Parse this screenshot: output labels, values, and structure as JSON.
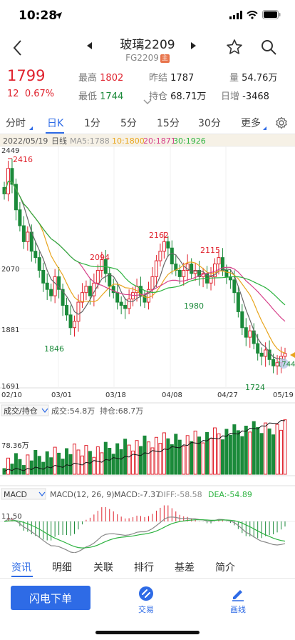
{
  "status": {
    "time": "10:28"
  },
  "nav": {
    "title": "玻璃2209",
    "code": "FG2209",
    "badge": "主"
  },
  "quote": {
    "price": "1799",
    "change": "12",
    "change_pct": "0.67%",
    "high_label": "最高",
    "high": "1802",
    "low_label": "最低",
    "low": "1744",
    "prev_settle_label": "昨结",
    "prev_settle": "1787",
    "open_interest_label": "持仓",
    "open_interest": "68.71万",
    "volume_label": "量",
    "volume": "54.76万",
    "daily_oi_change_label": "日增",
    "daily_oi_change": "-3468"
  },
  "tabs": [
    {
      "label": "分时",
      "active": false
    },
    {
      "label": "日K",
      "active": true
    },
    {
      "label": "1分",
      "active": false
    },
    {
      "label": "5分",
      "active": false
    },
    {
      "label": "15分",
      "active": false
    },
    {
      "label": "30分",
      "active": false
    },
    {
      "label": "更多",
      "active": false
    }
  ],
  "chart_info": {
    "date": "2022/05/19",
    "period": "日线",
    "ma5": "MA5:1788",
    "ma10": "10:1800",
    "ma20": "20:1871",
    "ma30": "30:1926",
    "y_top": "2449",
    "y_mid": "2070",
    "y_lower": "1881",
    "y_bottom": "1691",
    "x_labels": [
      "02/10",
      "03/01",
      "03/18",
      "04/08",
      "04/27",
      "05/19"
    ],
    "annotations": {
      "high1": "2416",
      "high2": "2094",
      "high3": "2162",
      "high4": "2115",
      "low1": "1846",
      "low2": "1980",
      "low3": "1724",
      "current": "1744"
    },
    "volume_selector": "成交/持仓",
    "volume_text": "成交:54.8万",
    "oi_text": "持仓:68.7万",
    "volume_axis": "78.36万",
    "macd_selector": "MACD",
    "macd_params": "MACD(12, 26, 9):",
    "macd_value": "MACD:-7.37",
    "diff_value": "DIFF:-58.58",
    "dea_value": "DEA:-54.89",
    "macd_axis": "11.50"
  },
  "colors": {
    "up": "#e0242f",
    "down": "#1b8a3a",
    "accent": "#2e6be6",
    "ma5": "#666666",
    "ma10": "#e8a51d",
    "ma20": "#d6408a",
    "ma30": "#2db340"
  },
  "chart_data": {
    "type": "candlestick",
    "x_axis_labels": [
      "02/10",
      "03/01",
      "03/18",
      "04/08",
      "04/27",
      "05/19"
    ],
    "y_range": [
      1691,
      2449
    ],
    "annotated_highs": [
      2416,
      2094,
      2162,
      2115
    ],
    "annotated_lows": [
      1846,
      1980,
      1724,
      1744
    ],
    "last_close": 1799,
    "ma": {
      "ma5": 1788,
      "ma10": 1800,
      "ma20": 1871,
      "ma30": 1926
    },
    "volume_axis_max": "78.36万",
    "macd": {
      "macd": -7.37,
      "diff": -58.58,
      "dea": -54.89,
      "params": "12, 26, 9"
    }
  },
  "bottom_tabs": [
    {
      "label": "资讯",
      "active": true
    },
    {
      "label": "明细",
      "active": false
    },
    {
      "label": "关联",
      "active": false
    },
    {
      "label": "排行",
      "active": false
    },
    {
      "label": "基差",
      "active": false
    },
    {
      "label": "简介",
      "active": false
    }
  ],
  "actions": {
    "flash_order": "闪电下单",
    "trade": "交易",
    "draw": "画线"
  }
}
